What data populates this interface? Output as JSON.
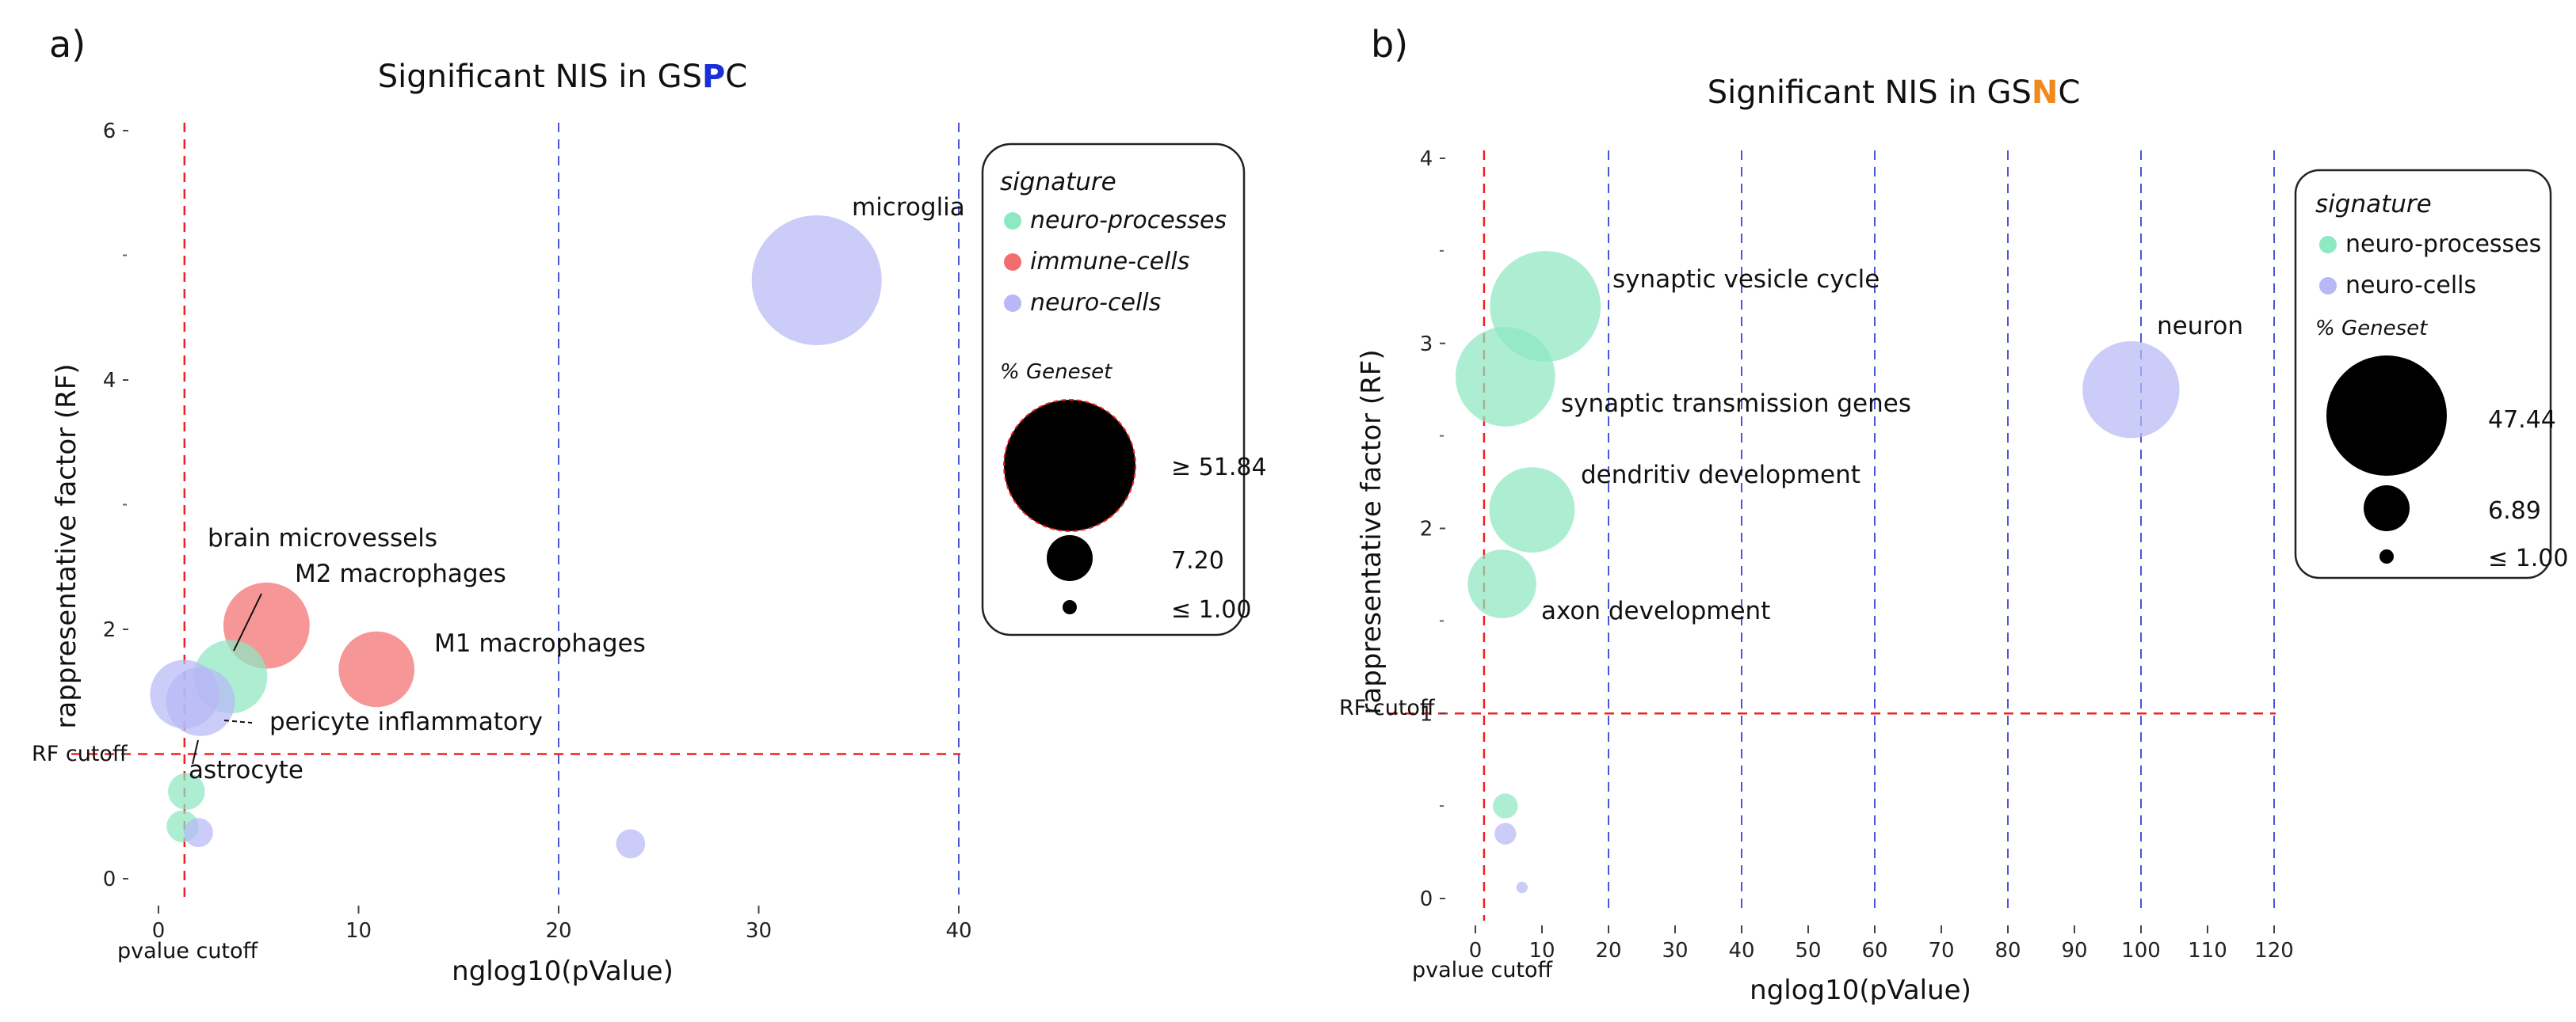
{
  "chart_data": [
    {
      "type": "scatter",
      "panel_label": "a)",
      "title": "Significant NIS in GS",
      "title_highlight": "P",
      "title_suffix": "C",
      "title_highlight_color": "#1b2fd6",
      "xlabel": "nglog10(pValue)",
      "ylabel": "rappresentative factor (RF)",
      "xlim": [
        0,
        40
      ],
      "ylim": [
        0,
        6
      ],
      "x_ticks": [
        0,
        10,
        20,
        30,
        40
      ],
      "y_ticks": [
        0,
        2,
        4,
        6
      ],
      "vlines_blue": [
        20,
        40
      ],
      "pvalue_cutoff": 1.3,
      "pvalue_cutoff_label": "pvalue cutoff",
      "rf_cutoff": 1.0,
      "rf_cutoff_label": "RF cutoff",
      "legend": {
        "title": "signature",
        "entries": [
          {
            "label": "neuro-processes",
            "color": "#8ee8c2"
          },
          {
            "label": "immune-cells",
            "color": "#f26d6d"
          },
          {
            "label": "neuro-cells",
            "color": "#b7b8f5"
          }
        ],
        "size_title": "% Geneset",
        "sizes": [
          {
            "label": "≥ 51.84",
            "value": 51.84
          },
          {
            "label": "7.20",
            "value": 7.2
          },
          {
            "label": "≤ 1.00",
            "value": 1.0
          }
        ]
      },
      "points": [
        {
          "name": "microglia",
          "x": 32.9,
          "y": 4.8,
          "size": 50,
          "category": "neuro-cells",
          "label": "microglia"
        },
        {
          "name": "M2 macrophages",
          "x": 5.4,
          "y": 2.03,
          "size": 22,
          "category": "immune-cells",
          "label": "M2 macrophages"
        },
        {
          "name": "M1 macrophages",
          "x": 10.9,
          "y": 1.68,
          "size": 17,
          "category": "immune-cells",
          "label": "M1 macrophages"
        },
        {
          "name": "brain microvessels",
          "x": 3.6,
          "y": 1.62,
          "size": 16,
          "category": "neuro-processes",
          "label": "brain microvessels"
        },
        {
          "name": "pericyte inflammatory",
          "x": 2.1,
          "y": 1.42,
          "size": 14,
          "category": "neuro-cells",
          "label": "pericyte inflammatory"
        },
        {
          "name": "astrocyte",
          "x": 1.3,
          "y": 1.48,
          "size": 14,
          "category": "neuro-cells",
          "label": "astrocyte"
        },
        {
          "name": "neuro-processes point 2",
          "x": 1.4,
          "y": 0.7,
          "size": 4,
          "category": "neuro-processes",
          "label": ""
        },
        {
          "name": "neuro-processes point 3",
          "x": 1.2,
          "y": 0.42,
          "size": 3,
          "category": "neuro-processes",
          "label": ""
        },
        {
          "name": "neuro-cells point 4",
          "x": 2.0,
          "y": 0.37,
          "size": 2.5,
          "category": "neuro-cells",
          "label": ""
        },
        {
          "name": "neuro-cells point 5",
          "x": 23.6,
          "y": 0.28,
          "size": 2.5,
          "category": "neuro-cells",
          "label": ""
        }
      ]
    },
    {
      "type": "scatter",
      "panel_label": "b)",
      "title": "Significant NIS in GS",
      "title_highlight": "N",
      "title_suffix": "C",
      "title_highlight_color": "#f08a1e",
      "xlabel": "nglog10(pValue)",
      "ylabel": "rappresentative factor (RF)",
      "xlim": [
        0,
        120
      ],
      "ylim": [
        0,
        4
      ],
      "x_ticks": [
        0,
        10,
        20,
        30,
        40,
        50,
        60,
        70,
        80,
        90,
        100,
        110,
        120
      ],
      "y_ticks": [
        0,
        1,
        2,
        3,
        4
      ],
      "vlines_blue": [
        20,
        40,
        60,
        80,
        100,
        120
      ],
      "pvalue_cutoff": 1.3,
      "pvalue_cutoff_label": "pvalue cutoff",
      "rf_cutoff": 1.0,
      "rf_cutoff_label": "RF cutoff",
      "legend": {
        "title": "signature",
        "entries": [
          {
            "label": "neuro-processes",
            "color": "#8ee8c2"
          },
          {
            "label": "neuro-cells",
            "color": "#b7b8f5"
          }
        ],
        "size_title": "% Geneset",
        "sizes": [
          {
            "label": "47.44",
            "value": 47.44
          },
          {
            "label": "6.89",
            "value": 6.89
          },
          {
            "label": "≤ 1.00",
            "value": 1.0
          }
        ]
      },
      "points": [
        {
          "name": "synaptic vesicle cycle",
          "x": 10.5,
          "y": 3.2,
          "size": 47,
          "category": "neuro-processes",
          "label": "synaptic vesicle cycle"
        },
        {
          "name": "synaptic transmission genes",
          "x": 4.5,
          "y": 2.82,
          "size": 38,
          "category": "neuro-processes",
          "label": "synaptic transmission genes"
        },
        {
          "name": "neuron",
          "x": 98.5,
          "y": 2.75,
          "size": 36,
          "category": "neuro-cells",
          "label": "neuron"
        },
        {
          "name": "dendritiv development",
          "x": 8.5,
          "y": 2.1,
          "size": 28,
          "category": "neuro-processes",
          "label": "dendritiv development"
        },
        {
          "name": "axon development",
          "x": 4.0,
          "y": 1.7,
          "size": 18,
          "category": "neuro-processes",
          "label": "axon development"
        },
        {
          "name": "neuro-processes point 6",
          "x": 4.5,
          "y": 0.5,
          "size": 2.4,
          "category": "neuro-processes",
          "label": ""
        },
        {
          "name": "neuro-cells point 7",
          "x": 4.5,
          "y": 0.35,
          "size": 1.8,
          "category": "neuro-cells",
          "label": ""
        },
        {
          "name": "neuro-cells point 8",
          "x": 7.0,
          "y": 0.06,
          "size": 0.5,
          "category": "neuro-cells",
          "label": ""
        }
      ]
    }
  ]
}
